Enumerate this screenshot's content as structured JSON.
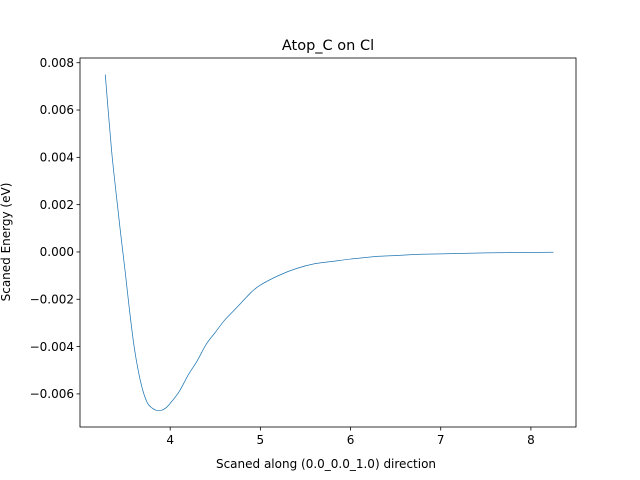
{
  "chart_data": {
    "type": "line",
    "title": "Atop_C on Cl",
    "xlabel": "Scaned along (0.0_0.0_1.0) direction",
    "ylabel": "Scaned Energy (eV)",
    "xlim": [
      3.0,
      8.5
    ],
    "ylim": [
      -0.0074,
      0.0082
    ],
    "xticks": [
      4,
      5,
      6,
      7,
      8
    ],
    "xtick_labels": [
      "4",
      "5",
      "6",
      "7",
      "8"
    ],
    "yticks": [
      -0.006,
      -0.004,
      -0.002,
      0.0,
      0.002,
      0.004,
      0.006,
      0.008
    ],
    "ytick_labels": [
      "−0.006",
      "−0.004",
      "−0.002",
      "0.000",
      "0.002",
      "0.004",
      "0.006",
      "0.008"
    ],
    "grid": false,
    "series": [
      {
        "color": "#1f77b4",
        "x": [
          3.28,
          3.35,
          3.4,
          3.45,
          3.5,
          3.55,
          3.6,
          3.65,
          3.7,
          3.75,
          3.8,
          3.85,
          3.9,
          3.95,
          4.0,
          4.1,
          4.2,
          4.3,
          4.4,
          4.5,
          4.6,
          4.7,
          4.8,
          4.9,
          5.0,
          5.2,
          5.4,
          5.6,
          5.8,
          6.0,
          6.25,
          6.5,
          6.75,
          7.0,
          7.25,
          7.5,
          7.75,
          8.0,
          8.25
        ],
        "y": [
          0.0075,
          0.0043,
          0.0025,
          0.0008,
          -0.0008,
          -0.0025,
          -0.004,
          -0.0051,
          -0.0059,
          -0.0064,
          -0.0066,
          -0.0067,
          -0.0067,
          -0.0066,
          -0.0064,
          -0.0059,
          -0.0052,
          -0.0046,
          -0.0039,
          -0.0034,
          -0.0029,
          -0.0025,
          -0.0021,
          -0.0017,
          -0.0014,
          -0.001,
          -0.0007,
          -0.0005,
          -0.0004,
          -0.0003,
          -0.0002,
          -0.00015,
          -0.0001,
          -8e-05,
          -6e-05,
          -4e-05,
          -3e-05,
          -2e-05,
          -1e-05
        ]
      }
    ]
  }
}
